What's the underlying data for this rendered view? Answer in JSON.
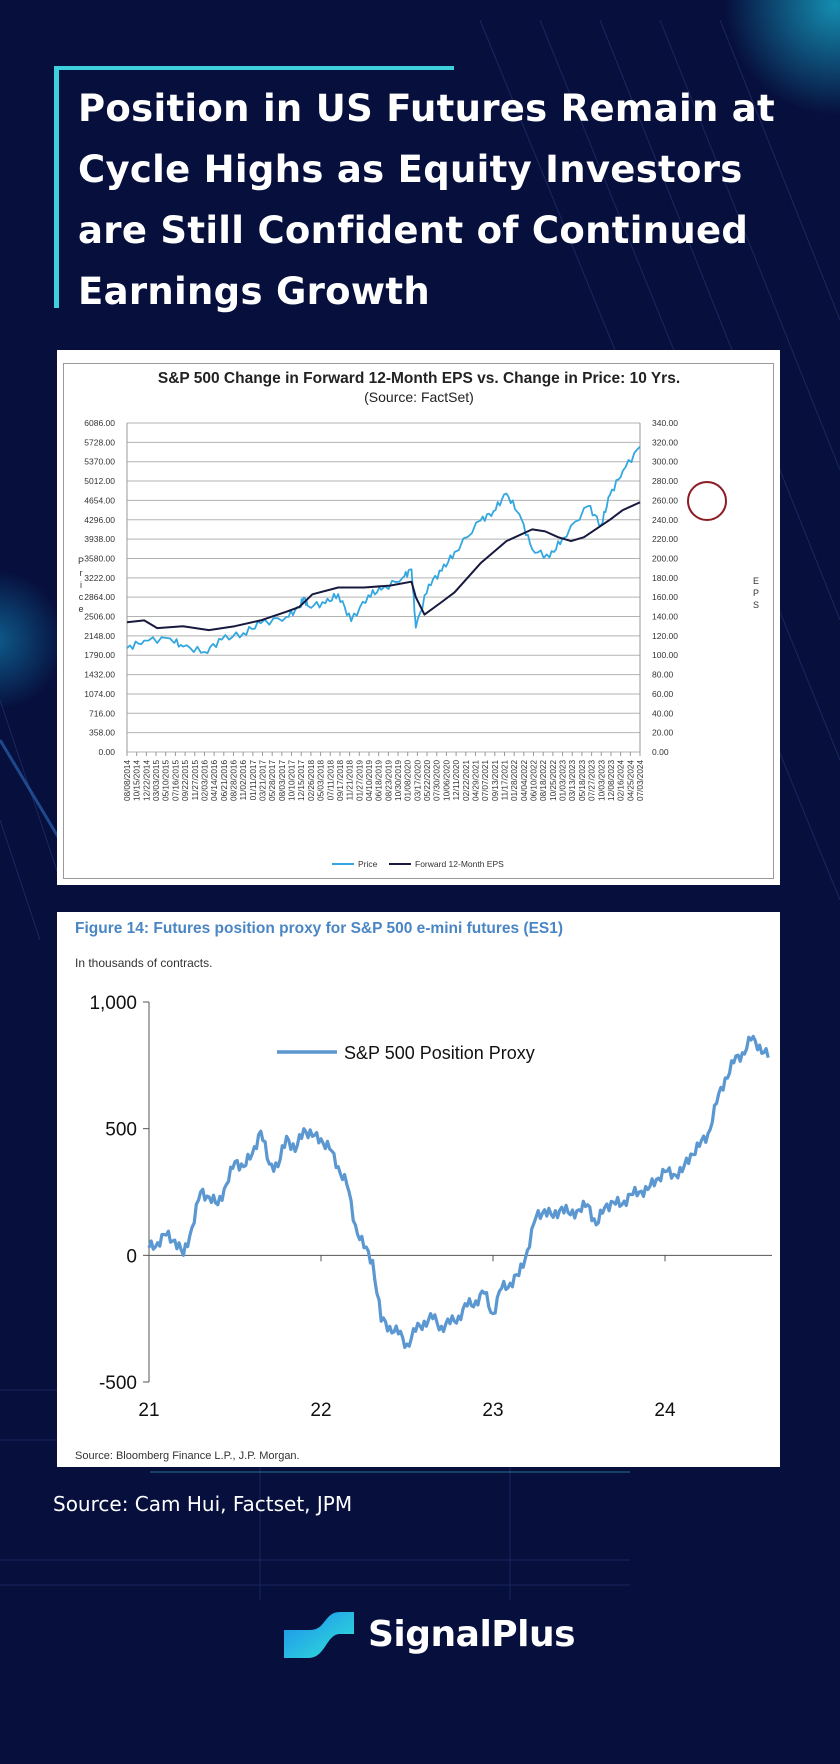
{
  "infographic": {
    "title": "Position in US Futures Remain at Cycle Highs as Equity Investors are Still Confident of Continued Earnings Growth",
    "source_line": "Source: Cam Hui, Factset, JPM",
    "brand": "SignalPlus",
    "colors": {
      "background": "#070f3d",
      "accent": "#3fd0dd",
      "price_line": "#33a7e0",
      "eps_line": "#17193e",
      "proxy_line": "#5b97d1",
      "highlight_circle": "#8b1c24"
    }
  },
  "chart_data": [
    {
      "type": "line",
      "title": "S&P 500 Change in Forward 12-Month EPS vs. Change in Price: 10 Yrs.",
      "subtitle": "(Source: FactSet)",
      "ylabel": "Price",
      "y2label": "EPS",
      "ylim": [
        0,
        6086
      ],
      "y2lim": [
        0,
        340
      ],
      "yticks": [
        "6086.00",
        "5728.00",
        "5370.00",
        "5012.00",
        "4654.00",
        "4296.00",
        "3938.00",
        "3580.00",
        "3222.00",
        "2864.00",
        "2506.00",
        "2148.00",
        "1790.00",
        "1432.00",
        "1074.00",
        "716.00",
        "358.00",
        "0.00"
      ],
      "y2ticks": [
        "340.00",
        "320.00",
        "300.00",
        "280.00",
        "260.00",
        "240.00",
        "220.00",
        "200.00",
        "180.00",
        "160.00",
        "140.00",
        "120.00",
        "100.00",
        "80.00",
        "60.00",
        "40.00",
        "20.00",
        "0.00"
      ],
      "xticks": [
        "08/08/2014",
        "10/15/2014",
        "12/22/2014",
        "03/03/2015",
        "05/10/2015",
        "07/16/2015",
        "09/22/2015",
        "11/27/2015",
        "02/03/2016",
        "04/14/2016",
        "06/21/2016",
        "08/28/2016",
        "11/02/2016",
        "01/11/2017",
        "03/21/2017",
        "05/28/2017",
        "08/03/2017",
        "10/10/2017",
        "12/15/2017",
        "02/26/2018",
        "05/03/2018",
        "07/11/2018",
        "09/17/2018",
        "11/21/2018",
        "01/27/2019",
        "04/10/2019",
        "06/18/2019",
        "08/23/2019",
        "10/30/2019",
        "01/08/2020",
        "03/17/2020",
        "05/22/2020",
        "07/30/2020",
        "10/06/2020",
        "12/11/2020",
        "02/22/2021",
        "04/29/2021",
        "07/07/2021",
        "09/13/2021",
        "11/17/2021",
        "01/28/2022",
        "04/04/2022",
        "06/10/2022",
        "08/18/2022",
        "10/25/2022",
        "01/03/2023",
        "03/13/2023",
        "05/18/2023",
        "07/27/2023",
        "10/03/2023",
        "12/08/2023",
        "02/16/2024",
        "04/25/2024",
        "07/03/2024"
      ],
      "series": [
        {
          "name": "Price",
          "axis": "left",
          "x": [
            "2014-08",
            "2014-12",
            "2015-06",
            "2015-09",
            "2016-02",
            "2016-06",
            "2016-11",
            "2017-03",
            "2017-09",
            "2017-12",
            "2018-01",
            "2018-02",
            "2018-06",
            "2018-09",
            "2018-12",
            "2019-04",
            "2019-07",
            "2019-12",
            "2020-02",
            "2020-03",
            "2020-06",
            "2020-09",
            "2020-12",
            "2021-06",
            "2021-09",
            "2021-12",
            "2022-03",
            "2022-06",
            "2022-10",
            "2023-01",
            "2023-07",
            "2023-10",
            "2023-12",
            "2024-03",
            "2024-07"
          ],
          "values": [
            1920,
            2060,
            2100,
            1950,
            1850,
            2080,
            2200,
            2380,
            2500,
            2670,
            2860,
            2700,
            2750,
            2920,
            2420,
            2900,
            3000,
            3230,
            3380,
            2300,
            3100,
            3350,
            3700,
            4280,
            4450,
            4780,
            4400,
            3750,
            3600,
            3950,
            4550,
            4200,
            4750,
            5200,
            5650
          ]
        },
        {
          "name": "Forward 12-Month EPS",
          "axis": "right",
          "x": [
            "2014-08",
            "2014-12",
            "2015-03",
            "2015-09",
            "2016-03",
            "2016-09",
            "2017-03",
            "2017-09",
            "2017-12",
            "2018-03",
            "2018-09",
            "2019-03",
            "2019-09",
            "2020-02",
            "2020-03",
            "2020-05",
            "2020-09",
            "2020-12",
            "2021-06",
            "2021-12",
            "2022-06",
            "2022-09",
            "2022-12",
            "2023-03",
            "2023-06",
            "2023-12",
            "2024-03",
            "2024-07"
          ],
          "values": [
            134,
            136,
            128,
            130,
            126,
            130,
            136,
            145,
            150,
            163,
            170,
            170,
            172,
            176,
            160,
            142,
            155,
            165,
            195,
            218,
            230,
            228,
            222,
            218,
            222,
            240,
            250,
            258
          ]
        }
      ],
      "legend": "bottom",
      "grid": true,
      "annotation": "circle around the latest Forward 12-Month EPS value"
    },
    {
      "type": "line",
      "title": "Figure 14: Futures position proxy for S&P 500 e-mini futures (ES1)",
      "subtitle": "In thousands of contracts.",
      "source": "Source: Bloomberg Finance L.P., J.P. Morgan.",
      "ylim": [
        -500,
        1000
      ],
      "yticks": [
        "1,000",
        "500",
        "0",
        "-500"
      ],
      "xticks": [
        "21",
        "22",
        "23",
        "24"
      ],
      "legend": "top-center",
      "grid": false,
      "series": [
        {
          "name": "S&P 500 Position Proxy",
          "x": [
            21.0,
            21.05,
            21.1,
            21.15,
            21.2,
            21.25,
            21.3,
            21.35,
            21.4,
            21.45,
            21.5,
            21.55,
            21.6,
            21.65,
            21.7,
            21.75,
            21.8,
            21.85,
            21.9,
            21.95,
            22.0,
            22.05,
            22.1,
            22.15,
            22.2,
            22.25,
            22.3,
            22.35,
            22.4,
            22.45,
            22.5,
            22.55,
            22.6,
            22.65,
            22.7,
            22.75,
            22.8,
            22.85,
            22.9,
            22.95,
            23.0,
            23.05,
            23.1,
            23.15,
            23.2,
            23.25,
            23.3,
            23.35,
            23.4,
            23.45,
            23.5,
            23.55,
            23.6,
            23.65,
            23.7,
            23.75,
            23.8,
            23.85,
            23.9,
            23.95,
            24.0,
            24.05,
            24.1,
            24.15,
            24.2,
            24.25,
            24.3,
            24.35,
            24.4,
            24.45,
            24.5,
            24.55,
            24.6
          ],
          "values": [
            30,
            50,
            80,
            60,
            0,
            110,
            250,
            230,
            200,
            280,
            370,
            350,
            400,
            490,
            360,
            350,
            470,
            410,
            500,
            470,
            460,
            420,
            350,
            280,
            120,
            30,
            -20,
            -260,
            -280,
            -310,
            -350,
            -300,
            -260,
            -250,
            -280,
            -270,
            -240,
            -200,
            -180,
            -150,
            -230,
            -130,
            -110,
            -80,
            20,
            150,
            180,
            150,
            190,
            160,
            180,
            200,
            120,
            190,
            210,
            200,
            240,
            250,
            260,
            300,
            330,
            320,
            330,
            400,
            430,
            480,
            600,
            700,
            760,
            800,
            850,
            830,
            780
          ]
        }
      ]
    }
  ]
}
